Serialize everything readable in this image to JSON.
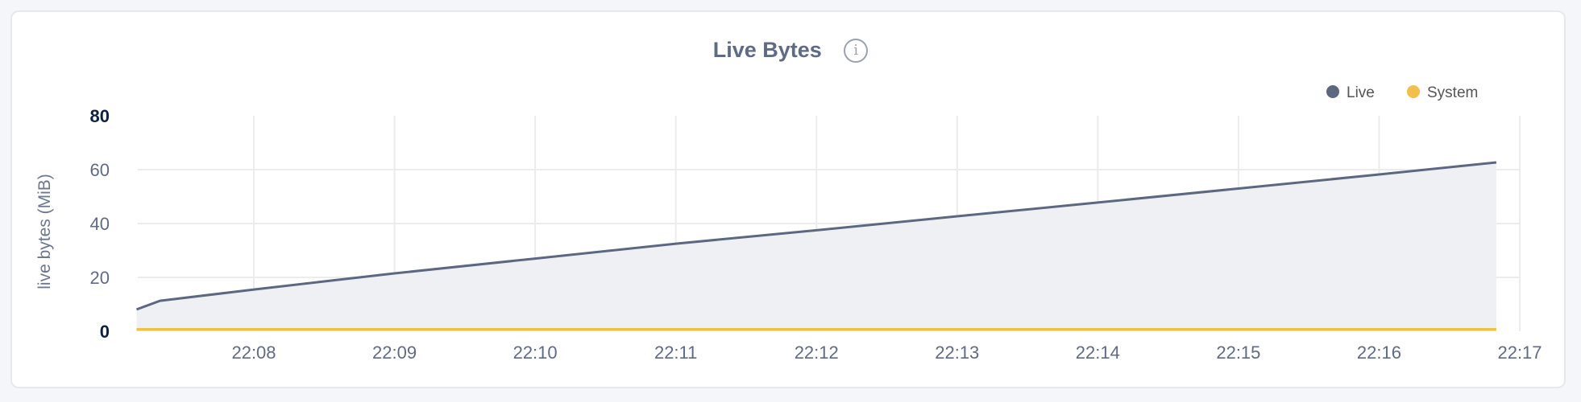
{
  "chart_data": {
    "type": "area",
    "title": "Live Bytes",
    "ylabel": "live bytes (MiB)",
    "xlabel": "",
    "ylim": [
      0,
      80
    ],
    "yticks": [
      "0",
      "20",
      "40",
      "60",
      "80"
    ],
    "xticks": [
      "22:08",
      "22:09",
      "22:10",
      "22:11",
      "22:12",
      "22:13",
      "22:14",
      "22:15",
      "22:16",
      "22:17"
    ],
    "grid": true,
    "legend_placement": "top-right",
    "series": [
      {
        "name": "Live",
        "color": "#5c6780",
        "x": [
          "22:07:10",
          "22:07:20",
          "22:08:00",
          "22:08:30",
          "22:09:00",
          "22:10:00",
          "22:11:00",
          "22:12:00",
          "22:13:00",
          "22:14:00",
          "22:15:00",
          "22:16:00",
          "22:16:50"
        ],
        "y": [
          8.1,
          11.3,
          15.5,
          18.5,
          21.5,
          27,
          32.5,
          37.5,
          42.7,
          47.8,
          53,
          58.2,
          62.7
        ]
      },
      {
        "name": "System",
        "color": "#f0c04a",
        "x": [
          "22:07:10",
          "22:16:50"
        ],
        "y": [
          0.7,
          0.7
        ]
      }
    ]
  }
}
